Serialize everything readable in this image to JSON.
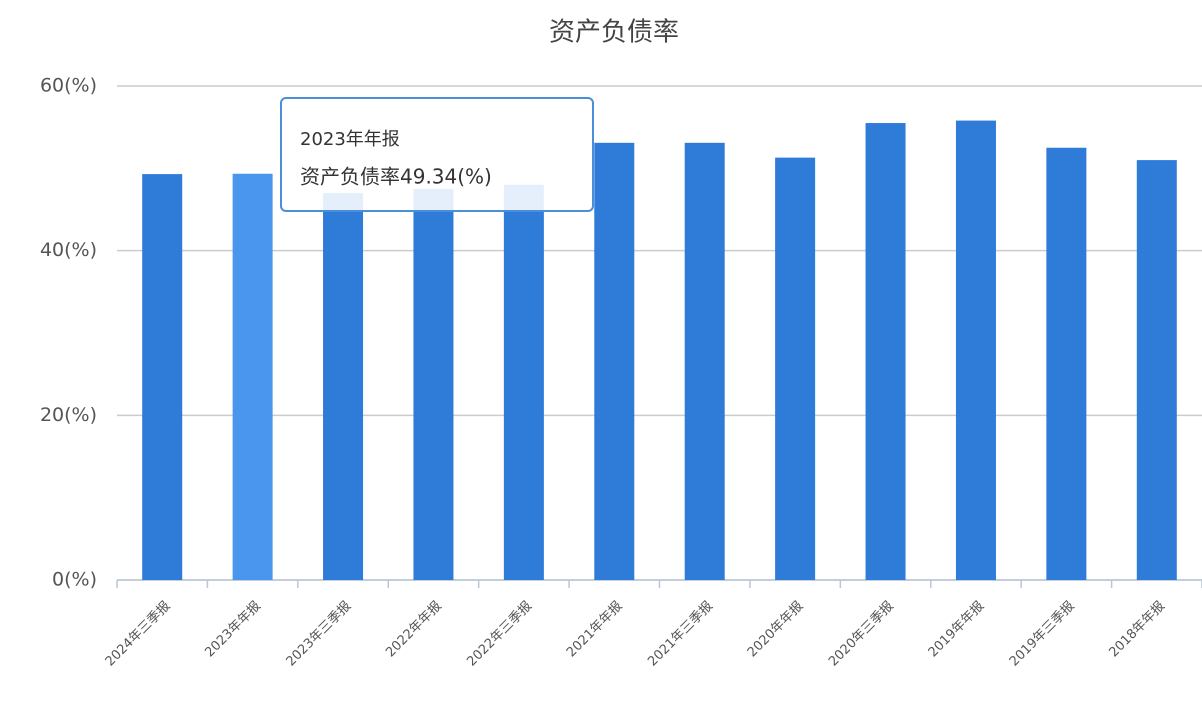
{
  "chart_data": {
    "type": "bar",
    "title": "资产负债率",
    "categories": [
      "2024年三季报",
      "2023年年报",
      "2023年三季报",
      "2022年年报",
      "2022年三季报",
      "2021年年报",
      "2021年三季报",
      "2020年年报",
      "2020年三季报",
      "2019年年报",
      "2019年三季报",
      "2018年年报"
    ],
    "values": [
      49.3,
      49.34,
      47,
      47.5,
      48,
      53.1,
      53.1,
      51.3,
      55.5,
      55.8,
      52.5,
      51.0
    ],
    "colors": [
      "#2e7bd8",
      "#4a96ee",
      "#2e7bd8",
      "#2e7bd8",
      "#2e7bd8",
      "#2e7bd8",
      "#2e7bd8",
      "#2e7bd8",
      "#2e7bd8",
      "#2e7bd8",
      "#2e7bd8",
      "#2e7bd8"
    ],
    "ylim": [
      0,
      60
    ],
    "yticks": [
      {
        "value": 0,
        "label": "0(%)"
      },
      {
        "value": 20,
        "label": "20(%)"
      },
      {
        "value": 40,
        "label": "40(%)"
      },
      {
        "value": 60,
        "label": "60(%)"
      }
    ],
    "grid": true,
    "tooltip": {
      "title": "2023年年报",
      "text": "资产负债率49.34(%)"
    }
  }
}
